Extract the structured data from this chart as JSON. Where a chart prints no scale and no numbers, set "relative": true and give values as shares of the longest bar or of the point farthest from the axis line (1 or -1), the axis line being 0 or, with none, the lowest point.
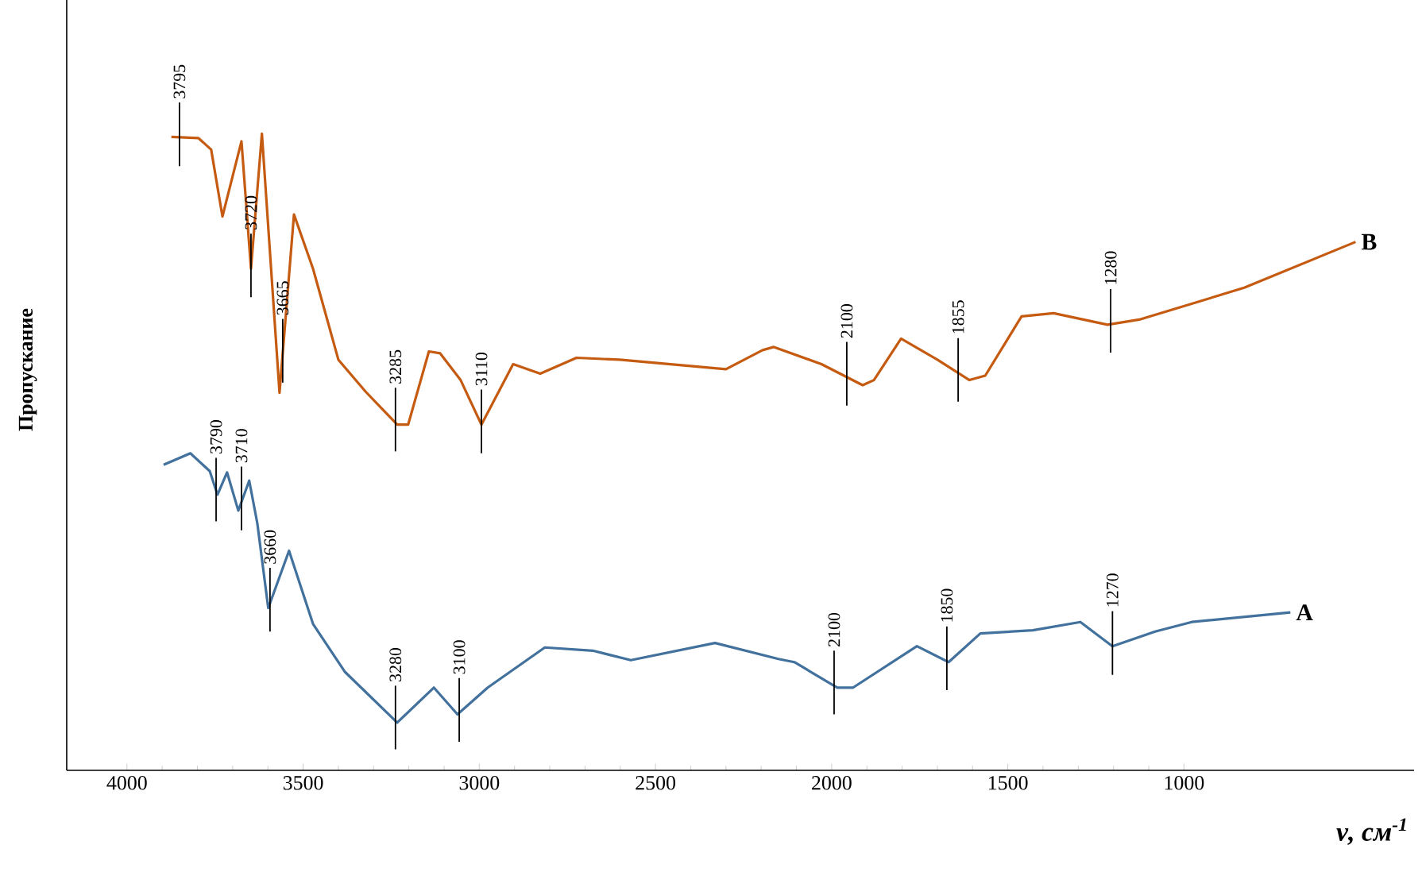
{
  "chart_data": {
    "type": "line",
    "relative": true,
    "ylabel": "Пропускание",
    "xlabel": "ν, см$^{-1}$",
    "xlim": [
      4171,
      347
    ],
    "xticks": [
      4000,
      3500,
      3000,
      2500,
      2000,
      1500,
      1000
    ],
    "series": [
      {
        "name": "B",
        "color": "#c55a11",
        "x": [
          3874,
          3797,
          3761,
          3729,
          3675,
          3648,
          3617,
          3567,
          3526,
          3472,
          3400,
          3323,
          3233,
          3202,
          3143,
          3111,
          3053,
          2994,
          2904,
          2827,
          2724,
          2602,
          2300,
          2196,
          2164,
          2029,
          1912,
          1880,
          1803,
          1700,
          1609,
          1564,
          1461,
          1370,
          1217,
          1127,
          829,
          513
        ],
        "values": [
          0.995,
          0.993,
          0.975,
          0.87,
          0.988,
          0.788,
          1.0,
          0.593,
          0.873,
          0.788,
          0.645,
          0.595,
          0.543,
          0.543,
          0.658,
          0.655,
          0.613,
          0.543,
          0.638,
          0.623,
          0.648,
          0.645,
          0.63,
          0.66,
          0.665,
          0.638,
          0.605,
          0.613,
          0.678,
          0.645,
          0.613,
          0.62,
          0.713,
          0.718,
          0.7,
          0.708,
          0.758,
          0.83
        ]
      },
      {
        "name": "A",
        "color": "#41719c",
        "x": [
          3896,
          3820,
          3765,
          3743,
          3716,
          3684,
          3653,
          3630,
          3599,
          3540,
          3472,
          3382,
          3233,
          3129,
          3062,
          2976,
          2814,
          2678,
          2570,
          2331,
          2151,
          2106,
          1984,
          1939,
          1758,
          1668,
          1578,
          1429,
          1294,
          1203,
          1082,
          978,
          698
        ],
        "values": [
          0.48,
          0.498,
          0.47,
          0.433,
          0.468,
          0.408,
          0.455,
          0.388,
          0.255,
          0.345,
          0.23,
          0.155,
          0.075,
          0.13,
          0.088,
          0.13,
          0.193,
          0.188,
          0.173,
          0.2,
          0.175,
          0.17,
          0.13,
          0.13,
          0.195,
          0.17,
          0.215,
          0.22,
          0.233,
          0.195,
          0.218,
          0.233,
          0.248
        ]
      }
    ],
    "annotations": [
      {
        "text": "3795",
        "x": 3851,
        "y": 0.994
      },
      {
        "text": "3720",
        "x": 3648,
        "y": 0.788
      },
      {
        "text": "3665",
        "x": 3558,
        "y": 0.654
      },
      {
        "text": "3285",
        "x": 3238,
        "y": 0.546
      },
      {
        "text": "3110",
        "x": 2994,
        "y": 0.543
      },
      {
        "text": "2100",
        "x": 1957,
        "y": 0.618
      },
      {
        "text": "1855",
        "x": 1641,
        "y": 0.624
      },
      {
        "text": "1280",
        "x": 1208,
        "y": 0.701
      },
      {
        "text": "3790",
        "x": 3747,
        "y": 0.436
      },
      {
        "text": "3710",
        "x": 3675,
        "y": 0.422
      },
      {
        "text": "3660",
        "x": 3594,
        "y": 0.263
      },
      {
        "text": "3280",
        "x": 3238,
        "y": 0.078
      },
      {
        "text": "3100",
        "x": 3057,
        "y": 0.09
      },
      {
        "text": "2100",
        "x": 1993,
        "y": 0.133
      },
      {
        "text": "1850",
        "x": 1673,
        "y": 0.171
      },
      {
        "text": "1270",
        "x": 1203,
        "y": 0.195
      }
    ]
  }
}
